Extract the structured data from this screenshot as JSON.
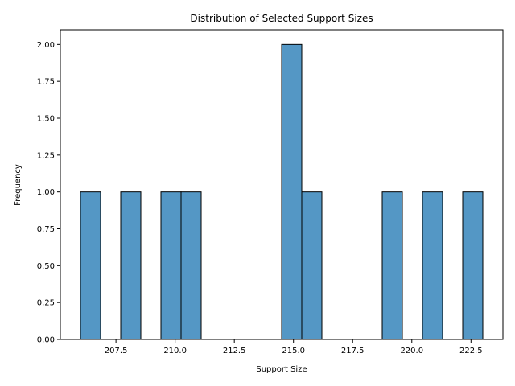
{
  "chart_data": {
    "type": "bar",
    "title": "Distribution of Selected Support Sizes",
    "xlabel": "Support Size",
    "ylabel": "Frequency",
    "xlim": [
      205.15,
      223.85
    ],
    "ylim": [
      0,
      2.1
    ],
    "grid": false,
    "bar_color": "#5497c5",
    "edge_color": "#000000",
    "x_ticks": [
      207.5,
      210.0,
      212.5,
      215.0,
      217.5,
      220.0,
      222.5
    ],
    "x_tick_labels": [
      "207.5",
      "210.0",
      "212.5",
      "215.0",
      "217.5",
      "220.0",
      "222.5"
    ],
    "y_ticks": [
      0,
      0.25,
      0.5,
      0.75,
      1.0,
      1.25,
      1.5,
      1.75,
      2.0
    ],
    "y_tick_labels": [
      "0.00",
      "0.25",
      "0.50",
      "0.75",
      "1.00",
      "1.25",
      "1.50",
      "1.75",
      "2.00"
    ],
    "bins": [
      {
        "x0": 206.0,
        "x1": 206.85,
        "count": 1
      },
      {
        "x0": 206.85,
        "x1": 207.7,
        "count": 0
      },
      {
        "x0": 207.7,
        "x1": 208.55,
        "count": 1
      },
      {
        "x0": 208.55,
        "x1": 209.4,
        "count": 0
      },
      {
        "x0": 209.4,
        "x1": 210.25,
        "count": 1
      },
      {
        "x0": 210.25,
        "x1": 211.1,
        "count": 1
      },
      {
        "x0": 211.1,
        "x1": 211.95,
        "count": 0
      },
      {
        "x0": 211.95,
        "x1": 212.8,
        "count": 0
      },
      {
        "x0": 212.8,
        "x1": 213.65,
        "count": 0
      },
      {
        "x0": 213.65,
        "x1": 214.5,
        "count": 0
      },
      {
        "x0": 214.5,
        "x1": 215.35,
        "count": 2
      },
      {
        "x0": 215.35,
        "x1": 216.2,
        "count": 1
      },
      {
        "x0": 216.2,
        "x1": 217.05,
        "count": 0
      },
      {
        "x0": 217.05,
        "x1": 217.9,
        "count": 0
      },
      {
        "x0": 217.9,
        "x1": 218.75,
        "count": 0
      },
      {
        "x0": 218.75,
        "x1": 219.6,
        "count": 1
      },
      {
        "x0": 219.6,
        "x1": 220.45,
        "count": 0
      },
      {
        "x0": 220.45,
        "x1": 221.3,
        "count": 1
      },
      {
        "x0": 221.3,
        "x1": 222.15,
        "count": 0
      },
      {
        "x0": 222.15,
        "x1": 223.0,
        "count": 1
      }
    ]
  }
}
